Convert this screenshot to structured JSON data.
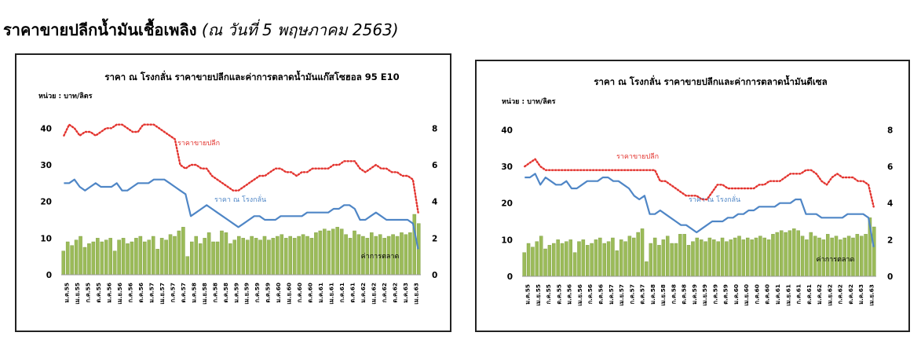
{
  "page": {
    "title": "ราคาขายปลีกน้ำมันเชื้อเพลิง",
    "subtitle": "(ณ วันที่ 5 พฤษภาคม 2563)"
  },
  "colors": {
    "bars": "#9bbb59",
    "bar_edge": "#7a9a3c",
    "retail_line": "#e3342f",
    "plant_line": "#4f86c6",
    "axis_text": "#000000"
  },
  "chart_data": [
    {
      "type": "bar+line",
      "title": "ราคา ณ โรงกลั่น ราคาขายปลีกและค่าการตลาดน้ำมันแก๊สโซฮอล 95 E10",
      "unit_label": "หน่วย : บาท/ลิตร",
      "y_left": {
        "ticks": [
          0,
          10,
          20,
          30,
          40
        ],
        "range": [
          0,
          45
        ]
      },
      "y_right": {
        "ticks": [
          0,
          2,
          4,
          6,
          8
        ],
        "range": [
          0,
          9
        ]
      },
      "x_labels": [
        "ม.ค.55",
        "เม.ย.55",
        "ก.ค.55",
        "ต.ค.55",
        "ม.ค.56",
        "เม.ย.56",
        "ก.ค.56",
        "ต.ค.56",
        "ม.ค.57",
        "เม.ย.57",
        "ก.ค.57",
        "ต.ค.57",
        "ม.ค.58",
        "เม.ย.58",
        "ก.ค.58",
        "ต.ค.58",
        "ม.ค.59",
        "เม.ย.59",
        "ก.ค.59",
        "ต.ค.59",
        "ม.ค.60",
        "เม.ย.60",
        "ก.ค.60",
        "ต.ค.60",
        "ม.ค.61",
        "เม.ย.61",
        "ก.ค.61",
        "ต.ค.61",
        "ม.ค.62",
        "เม.ย.62",
        "ก.ค.62",
        "ต.ค.62",
        "ม.ค.63",
        "เม.ย.63"
      ],
      "series": [
        {
          "name": "ราคาขายปลีก",
          "kind": "line",
          "style": "dotted",
          "axis": "left",
          "values": [
            38,
            41,
            40,
            38,
            39,
            39,
            38,
            39,
            40,
            40,
            41,
            41,
            40,
            39,
            39,
            41,
            41,
            41,
            40,
            39,
            38,
            37,
            30,
            29,
            30,
            30,
            29,
            29,
            27,
            26,
            25,
            24,
            23,
            23,
            24,
            25,
            26,
            27,
            27,
            28,
            29,
            29,
            28,
            28,
            27,
            28,
            28,
            29,
            29,
            29,
            29,
            30,
            30,
            31,
            31,
            31,
            29,
            28,
            29,
            30,
            29,
            29,
            28,
            28,
            27,
            27,
            26,
            17
          ]
        },
        {
          "name": "ราคา ณ โรงกลั่น",
          "kind": "line",
          "style": "solid",
          "axis": "left",
          "values": [
            25,
            25,
            26,
            24,
            23,
            24,
            25,
            24,
            24,
            24,
            25,
            23,
            23,
            24,
            25,
            25,
            25,
            26,
            26,
            26,
            25,
            24,
            23,
            22,
            16,
            17,
            18,
            19,
            18,
            17,
            16,
            15,
            14,
            13,
            14,
            15,
            16,
            16,
            15,
            15,
            15,
            16,
            16,
            16,
            16,
            16,
            17,
            17,
            17,
            17,
            17,
            18,
            18,
            19,
            19,
            18,
            15,
            15,
            16,
            17,
            16,
            15,
            15,
            15,
            15,
            15,
            14,
            7
          ]
        },
        {
          "name": "ค่าการตลาด",
          "kind": "bar",
          "axis": "right",
          "values": [
            1.3,
            1.8,
            1.6,
            1.9,
            2.1,
            1.5,
            1.7,
            1.8,
            2.0,
            1.8,
            1.9,
            2.0,
            1.3,
            1.9,
            2.0,
            1.7,
            1.8,
            2.0,
            2.1,
            1.8,
            1.9,
            2.1,
            1.4,
            2.0,
            1.9,
            2.2,
            2.1,
            2.4,
            2.6,
            1.0,
            1.8,
            2.1,
            1.7,
            2.0,
            2.3,
            1.8,
            1.8,
            2.4,
            2.3,
            1.7,
            1.9,
            2.1,
            2.0,
            1.9,
            2.1,
            2.0,
            1.9,
            2.1,
            1.9,
            2.0,
            2.1,
            2.2,
            2.0,
            2.1,
            2.0,
            2.1,
            2.2,
            2.1,
            2.0,
            2.3,
            2.4,
            2.5,
            2.4,
            2.5,
            2.6,
            2.5,
            2.2,
            2.0,
            2.4,
            2.2,
            2.1,
            2.0,
            2.3,
            2.1,
            2.2,
            2.0,
            2.1,
            2.2,
            2.1,
            2.3,
            2.2,
            2.3,
            3.3,
            2.8
          ]
        }
      ],
      "labels": {
        "retail": "ราคาขายปลีก",
        "plant": "ราคา ณ โรงกลั่น",
        "margin": "ค่าการตลาด"
      }
    },
    {
      "type": "bar+line",
      "title": "ราคา ณ โรงกลั่น ราคาขายปลีกและค่าการตลาดน้ำมันดีเซล",
      "unit_label": "หน่วย : บาท/ลิตร",
      "y_left": {
        "ticks": [
          0,
          10,
          20,
          30,
          40
        ],
        "range": [
          0,
          45
        ]
      },
      "y_right": {
        "ticks": [
          0,
          2,
          4,
          6,
          8
        ],
        "range": [
          0,
          9
        ]
      },
      "x_labels": [
        "ม.ค.55",
        "เม.ย.55",
        "ก.ค.55",
        "ต.ค.55",
        "ม.ค.56",
        "เม.ย.56",
        "ก.ค.56",
        "ต.ค.56",
        "ม.ค.57",
        "เม.ย.57",
        "ก.ค.57",
        "ต.ค.57",
        "ม.ค.58",
        "เม.ย.58",
        "ก.ค.58",
        "ต.ค.58",
        "ม.ค.59",
        "เม.ย.59",
        "ก.ค.59",
        "ต.ค.59",
        "ม.ค.60",
        "เม.ย.60",
        "ก.ค.60",
        "ต.ค.60",
        "ม.ค.61",
        "เม.ย.61",
        "ก.ค.61",
        "ต.ค.61",
        "ม.ค.62",
        "เม.ย.62",
        "ก.ค.62",
        "ต.ค.62",
        "ม.ค.63",
        "เม.ย.63"
      ],
      "series": [
        {
          "name": "ราคาขายปลีก",
          "kind": "line",
          "style": "dotted",
          "axis": "left",
          "values": [
            30,
            31,
            32,
            30,
            29,
            29,
            29,
            29,
            29,
            29,
            29,
            29,
            29,
            29,
            29,
            29,
            29,
            29,
            29,
            29,
            29,
            29,
            29,
            29,
            29,
            29,
            26,
            26,
            25,
            24,
            23,
            22,
            22,
            22,
            21,
            21,
            23,
            25,
            25,
            24,
            24,
            24,
            24,
            24,
            24,
            25,
            25,
            26,
            26,
            26,
            27,
            28,
            28,
            28,
            29,
            29,
            28,
            26,
            25,
            27,
            28,
            27,
            27,
            27,
            26,
            26,
            25,
            19
          ]
        },
        {
          "name": "ราคา ณ โรงกลั่น",
          "kind": "line",
          "style": "solid",
          "axis": "left",
          "values": [
            27,
            27,
            28,
            25,
            27,
            26,
            25,
            25,
            26,
            24,
            24,
            25,
            26,
            26,
            26,
            27,
            27,
            26,
            26,
            25,
            24,
            22,
            21,
            22,
            17,
            17,
            18,
            17,
            16,
            15,
            14,
            14,
            13,
            12,
            13,
            14,
            15,
            15,
            15,
            16,
            16,
            17,
            17,
            18,
            18,
            19,
            19,
            19,
            19,
            20,
            20,
            20,
            21,
            21,
            17,
            17,
            17,
            16,
            16,
            16,
            16,
            16,
            17,
            17,
            17,
            17,
            16,
            8
          ]
        },
        {
          "name": "ค่าการตลาด",
          "kind": "bar",
          "axis": "right",
          "values": [
            1.3,
            1.8,
            1.6,
            1.9,
            2.2,
            1.5,
            1.7,
            1.8,
            2.0,
            1.8,
            1.9,
            2.0,
            1.3,
            1.9,
            2.0,
            1.7,
            1.8,
            2.0,
            2.1,
            1.8,
            1.9,
            2.1,
            1.4,
            2.0,
            1.9,
            2.2,
            2.1,
            2.4,
            2.6,
            0.8,
            1.8,
            2.1,
            1.7,
            2.0,
            2.2,
            1.8,
            1.8,
            2.3,
            2.3,
            1.7,
            1.9,
            2.1,
            2.0,
            1.9,
            2.1,
            2.0,
            1.9,
            2.1,
            1.9,
            2.0,
            2.1,
            2.2,
            2.0,
            2.1,
            2.0,
            2.1,
            2.2,
            2.1,
            2.0,
            2.3,
            2.4,
            2.5,
            2.4,
            2.5,
            2.6,
            2.5,
            2.2,
            2.0,
            2.4,
            2.2,
            2.1,
            2.0,
            2.3,
            2.1,
            2.2,
            2.0,
            2.1,
            2.2,
            2.1,
            2.3,
            2.2,
            2.3,
            3.2,
            2.7
          ]
        }
      ],
      "labels": {
        "retail": "ราคาขายปลีก",
        "plant": "ราคา ณ โรงกลั่น",
        "margin": "ค่าการตลาด"
      }
    }
  ]
}
